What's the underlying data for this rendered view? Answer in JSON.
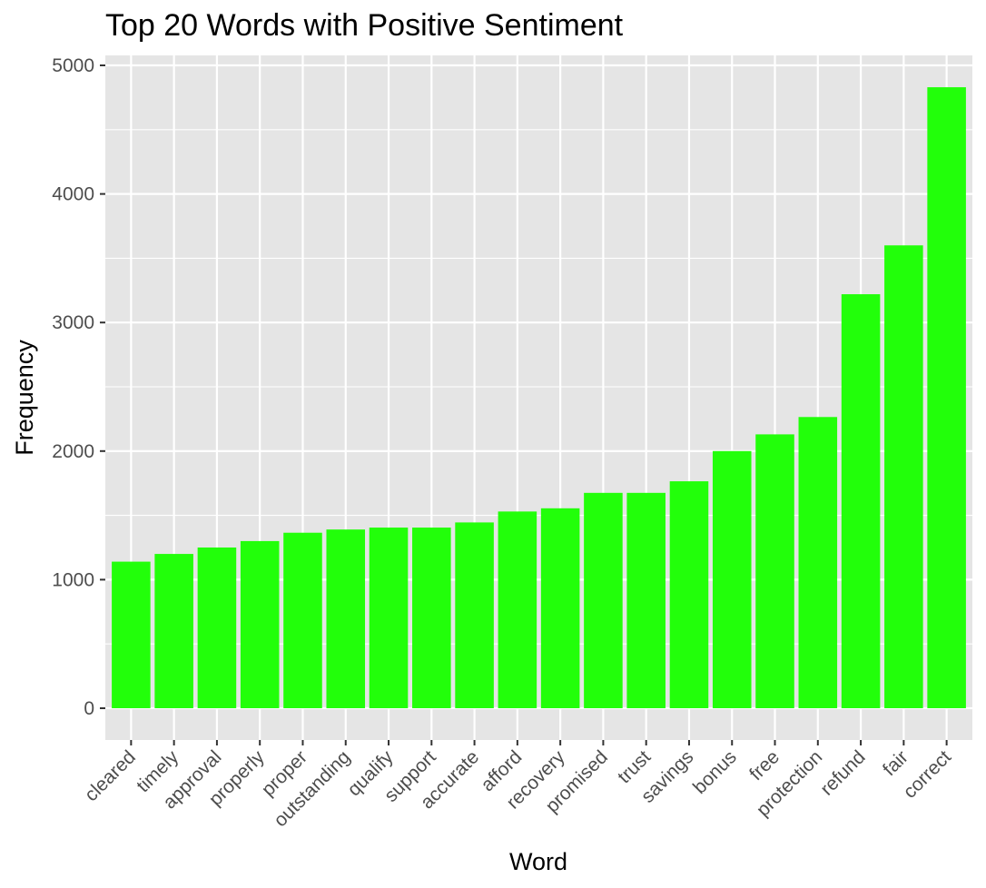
{
  "chart_data": {
    "type": "bar",
    "title": "Top 20 Words with Positive Sentiment",
    "xlabel": "Word",
    "ylabel": "Frequency",
    "categories": [
      "cleared",
      "timely",
      "approval",
      "properly",
      "proper",
      "outstanding",
      "qualify",
      "support",
      "accurate",
      "afford",
      "recovery",
      "promised",
      "trust",
      "savings",
      "bonus",
      "free",
      "protection",
      "refund",
      "fair",
      "correct"
    ],
    "values": [
      1140,
      1200,
      1250,
      1300,
      1365,
      1390,
      1405,
      1405,
      1445,
      1530,
      1555,
      1675,
      1675,
      1765,
      2000,
      2130,
      2265,
      3220,
      3600,
      4830
    ],
    "ylim": [
      0,
      5000
    ],
    "yticks": [
      0,
      1000,
      2000,
      3000,
      4000,
      5000
    ],
    "y_tick_labels": [
      "0",
      "1000",
      "2000",
      "3000",
      "4000",
      "5000"
    ],
    "grid": true,
    "legend": "none",
    "colors": {
      "bar": "#22FF0A",
      "panel": "#E5E5E5",
      "grid": "#FFFFFF",
      "tick_text": "#4D4D4D",
      "tick_mark": "#333333"
    }
  }
}
